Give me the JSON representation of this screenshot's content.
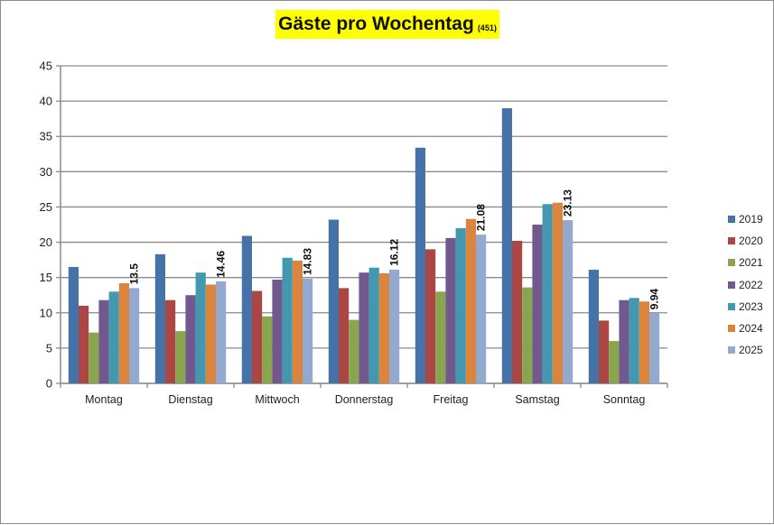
{
  "title": {
    "main": "Gäste pro Wochentag",
    "sub": "(451)",
    "background": "#ffff00"
  },
  "chart_data": {
    "type": "bar",
    "title": "Gäste pro Wochentag (451)",
    "xlabel": "",
    "ylabel": "",
    "ylim": [
      0,
      45
    ],
    "yticks": [
      0,
      5,
      10,
      15,
      20,
      25,
      30,
      35,
      40,
      45
    ],
    "grid": true,
    "legend_position": "right",
    "categories": [
      "Montag",
      "Dienstag",
      "Mittwoch",
      "Donnerstag",
      "Freitag",
      "Samstag",
      "Sonntag"
    ],
    "series": [
      {
        "name": "2019",
        "color": "#4572a7",
        "values": [
          16.5,
          18.3,
          20.9,
          23.2,
          33.4,
          39.0,
          16.1
        ]
      },
      {
        "name": "2020",
        "color": "#aa4643",
        "values": [
          11.0,
          11.8,
          13.1,
          13.5,
          19.0,
          20.2,
          8.9
        ]
      },
      {
        "name": "2021",
        "color": "#89a54e",
        "values": [
          7.2,
          7.4,
          9.5,
          9.0,
          13.0,
          13.6,
          6.0
        ]
      },
      {
        "name": "2022",
        "color": "#71588f",
        "values": [
          11.8,
          12.5,
          14.7,
          15.7,
          20.6,
          22.5,
          11.8
        ]
      },
      {
        "name": "2023",
        "color": "#4198af",
        "values": [
          13.0,
          15.7,
          17.8,
          16.4,
          22.0,
          25.4,
          12.1
        ]
      },
      {
        "name": "2024",
        "color": "#db843d",
        "values": [
          14.2,
          14.0,
          17.4,
          15.6,
          23.3,
          25.6,
          11.6
        ]
      },
      {
        "name": "2025",
        "color": "#93a9cf",
        "values": [
          13.5,
          14.46,
          14.83,
          16.12,
          21.08,
          23.13,
          9.94
        ]
      }
    ],
    "data_labels": {
      "series": "2025",
      "labels": [
        "13.5",
        "14.46",
        "14.83",
        "16.12",
        "21.08",
        "23.13",
        "9.94"
      ]
    }
  }
}
